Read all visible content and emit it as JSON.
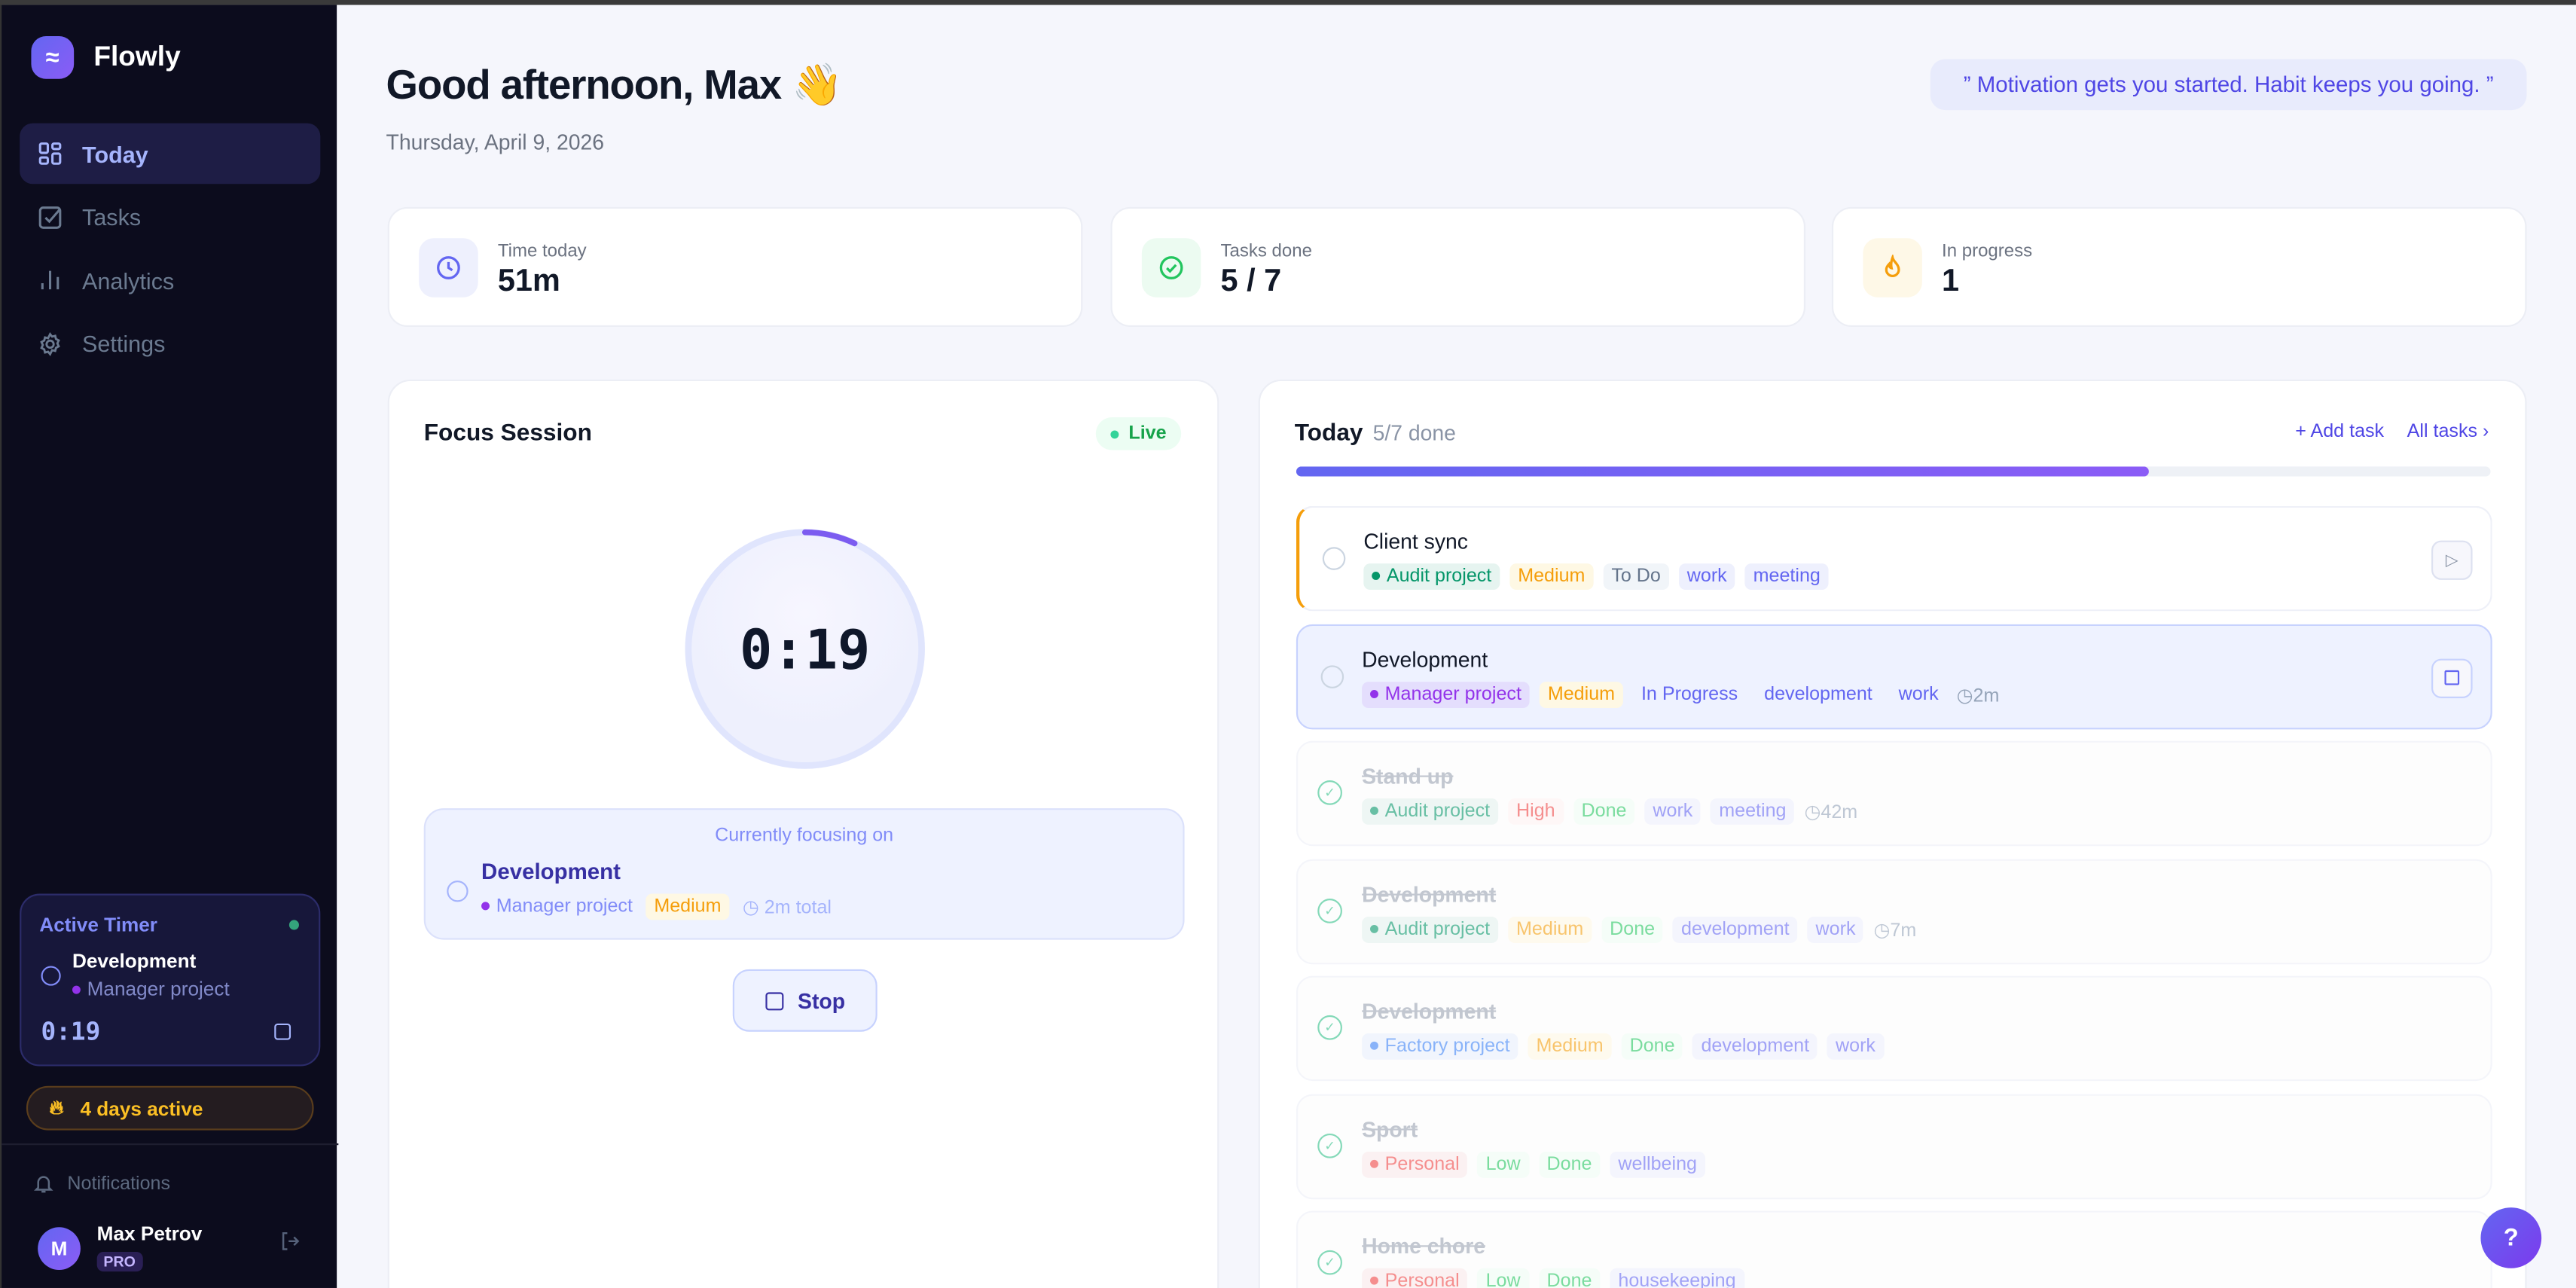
{
  "app": {
    "name": "Flowly",
    "logo_glyph": "≈"
  },
  "sidebar": {
    "items": [
      {
        "label": "Today",
        "icon": "grid-icon",
        "active": true
      },
      {
        "label": "Tasks",
        "icon": "checkbox-icon"
      },
      {
        "label": "Analytics",
        "icon": "bar-chart-icon"
      },
      {
        "label": "Settings",
        "icon": "gear-icon"
      }
    ],
    "active_timer": {
      "title": "Active Timer",
      "task": "Development",
      "project": "Manager project",
      "project_color": "#9333ea",
      "time": "0:19"
    },
    "streak": "4 days active",
    "notifications": "Notifications",
    "user": {
      "initial": "M",
      "name": "Max Petrov",
      "badge": "PRO"
    }
  },
  "header": {
    "greeting": "Good afternoon, Max 👋",
    "date": "Thursday, April 9, 2026",
    "quote": "” Motivation gets you started. Habit keeps you going. ”"
  },
  "stats": [
    {
      "label": "Time today",
      "value": "51m",
      "icon": "clock-icon",
      "color": "#6366f1",
      "bg": "#eef0fd"
    },
    {
      "label": "Tasks done",
      "value": "5 / 7",
      "icon": "check-circle-icon",
      "color": "#22c55e",
      "bg": "#ecfbf1"
    },
    {
      "label": "In progress",
      "value": "1",
      "icon": "flame-icon",
      "color": "#f59e0b",
      "bg": "#fef8e7"
    }
  ],
  "focus": {
    "title": "Focus Session",
    "status": "Live",
    "time": "0:19",
    "progress_fraction": 0.07,
    "current_label": "Currently focusing on",
    "task": "Development",
    "project": "Manager project",
    "project_color": "#9333ea",
    "priority": "Medium",
    "total": "2m total",
    "stop_label": "Stop"
  },
  "today": {
    "title": "Today",
    "summary": "5/7 done",
    "progress_percent": 71.4,
    "add_task": "+ Add task",
    "all_tasks": "All tasks ›",
    "tasks": [
      {
        "name": "Client sync",
        "state": "todo",
        "project": "Audit project",
        "project_color": "#059669",
        "priority": "Medium",
        "status": "To Do",
        "tags": [
          "work",
          "meeting"
        ],
        "duration": ""
      },
      {
        "name": "Development",
        "state": "active",
        "project": "Manager project",
        "project_color": "#9333ea",
        "priority": "Medium",
        "status": "In Progress",
        "tags": [
          "development",
          "work"
        ],
        "duration": "2m"
      },
      {
        "name": "Stand up",
        "state": "done",
        "project": "Audit project",
        "project_color": "#059669",
        "priority": "High",
        "status": "Done",
        "tags": [
          "work",
          "meeting"
        ],
        "duration": "42m"
      },
      {
        "name": "Development",
        "state": "done",
        "project": "Audit project",
        "project_color": "#059669",
        "priority": "Medium",
        "status": "Done",
        "tags": [
          "development",
          "work"
        ],
        "duration": "7m"
      },
      {
        "name": "Development",
        "state": "done",
        "project": "Factory project",
        "project_color": "#3b82f6",
        "priority": "Medium",
        "status": "Done",
        "tags": [
          "development",
          "work"
        ],
        "duration": ""
      },
      {
        "name": "Sport",
        "state": "done",
        "project": "Personal",
        "project_color": "#ef4444",
        "priority": "Low",
        "status": "Done",
        "tags": [
          "wellbeing"
        ],
        "duration": ""
      },
      {
        "name": "Home chore",
        "state": "done",
        "project": "Personal",
        "project_color": "#ef4444",
        "priority": "Low",
        "status": "Done",
        "tags": [
          "housekeeping"
        ],
        "duration": ""
      }
    ]
  },
  "help": "?"
}
